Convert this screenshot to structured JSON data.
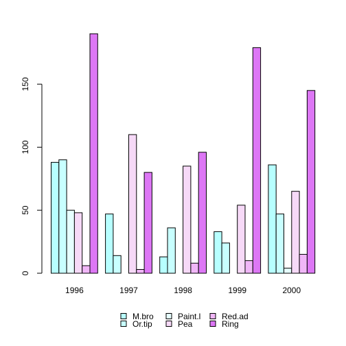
{
  "chart_data": {
    "type": "bar",
    "categories": [
      "1996",
      "1997",
      "1998",
      "1999",
      "2000"
    ],
    "series": [
      {
        "name": "M.bro",
        "color": "#b7ffff",
        "values": [
          88,
          47,
          13,
          33,
          86
        ]
      },
      {
        "name": "Or.tip",
        "color": "#c8ffff",
        "values": [
          90,
          14,
          36,
          24,
          47
        ]
      },
      {
        "name": "Paint.l",
        "color": "#e6ffff",
        "values": [
          50,
          0,
          0,
          0,
          4
        ]
      },
      {
        "name": "Pea",
        "color": "#f6d9f7",
        "values": [
          48,
          110,
          85,
          54,
          65
        ]
      },
      {
        "name": "Red.ad",
        "color": "#f0b6f7",
        "values": [
          6,
          3,
          8,
          10,
          15
        ]
      },
      {
        "name": "Ring",
        "color": "#dd77f5",
        "values": [
          190,
          80,
          96,
          179,
          145
        ]
      }
    ],
    "yticks": [
      0,
      50,
      100,
      150
    ],
    "ylim": [
      0,
      195
    ],
    "legend_position": "bottom",
    "grid": false
  }
}
